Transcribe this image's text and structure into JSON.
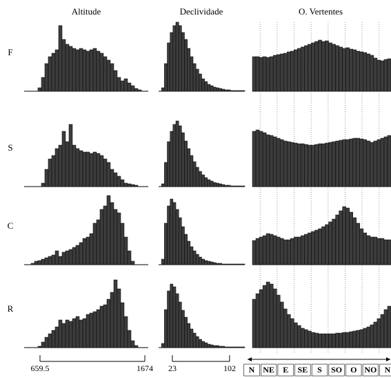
{
  "columns": [
    "Altitude",
    "Declividade",
    "O. Vertentes"
  ],
  "rows": [
    "F",
    "S",
    "C",
    "R"
  ],
  "x_axes": [
    {
      "xlim": [
        506,
        1707
      ],
      "xticks": [
        659.5,
        1674
      ]
    },
    {
      "xlim": [
        4,
        123
      ],
      "xticks": [
        23,
        102
      ]
    },
    {
      "categories": [
        "N",
        "NE",
        "E",
        "SE",
        "S",
        "SO",
        "O",
        "NO",
        "N"
      ]
    }
  ],
  "chart_data": [
    {
      "type": "bar",
      "ylim": [
        0,
        100
      ],
      "color": "#3c3c3c",
      "values": [
        0,
        0,
        0,
        0,
        5,
        20,
        40,
        50,
        55,
        60,
        95,
        75,
        68,
        65,
        62,
        60,
        62,
        60,
        58,
        60,
        62,
        58,
        55,
        50,
        45,
        40,
        30,
        20,
        15,
        18,
        12,
        8,
        4,
        2,
        0,
        0
      ]
    },
    {
      "type": "bar",
      "ylim": [
        0,
        100
      ],
      "color": "#3c3c3c",
      "values": [
        0,
        5,
        40,
        70,
        85,
        95,
        100,
        95,
        85,
        75,
        62,
        50,
        40,
        32,
        25,
        18,
        14,
        10,
        8,
        6,
        5,
        4,
        3,
        2,
        2,
        1,
        1,
        1,
        1,
        1
      ]
    },
    {
      "type": "bar",
      "ylim": [
        0,
        100
      ],
      "color": "#3c3c3c",
      "values": [
        50,
        50,
        49,
        50,
        49,
        50,
        52,
        53,
        54,
        55,
        57,
        58,
        60,
        62,
        64,
        66,
        68,
        70,
        72,
        74,
        72,
        73,
        70,
        68,
        66,
        64,
        62,
        63,
        61,
        60,
        58,
        57,
        56,
        54,
        52,
        48,
        45,
        44,
        46,
        47
      ]
    },
    {
      "type": "bar",
      "ylim": [
        0,
        100
      ],
      "color": "#3c3c3c",
      "values": [
        0,
        0,
        0,
        0,
        0,
        5,
        25,
        40,
        45,
        55,
        60,
        80,
        65,
        90,
        60,
        55,
        52,
        50,
        50,
        48,
        50,
        48,
        45,
        40,
        35,
        25,
        20,
        15,
        10,
        5,
        4,
        3,
        2,
        0,
        0,
        0
      ]
    },
    {
      "type": "bar",
      "ylim": [
        0,
        100
      ],
      "color": "#3c3c3c",
      "values": [
        0,
        4,
        35,
        65,
        80,
        90,
        95,
        88,
        78,
        66,
        55,
        45,
        36,
        28,
        22,
        17,
        13,
        10,
        8,
        6,
        5,
        4,
        3,
        2,
        2,
        1,
        1,
        1,
        1,
        1
      ]
    },
    {
      "type": "bar",
      "ylim": [
        0,
        100
      ],
      "color": "#3c3c3c",
      "values": [
        80,
        82,
        80,
        78,
        75,
        74,
        72,
        70,
        68,
        66,
        65,
        64,
        63,
        62,
        62,
        61,
        60,
        60,
        61,
        62,
        62,
        63,
        64,
        65,
        66,
        67,
        68,
        68,
        69,
        70,
        70,
        69,
        68,
        66,
        64,
        66,
        68,
        70,
        72,
        74
      ]
    },
    {
      "type": "bar",
      "ylim": [
        0,
        100
      ],
      "color": "#3c3c3c",
      "values": [
        0,
        0,
        2,
        5,
        6,
        8,
        10,
        12,
        14,
        20,
        12,
        18,
        20,
        22,
        25,
        28,
        32,
        38,
        40,
        45,
        60,
        65,
        80,
        85,
        100,
        90,
        80,
        75,
        60,
        40,
        20,
        5,
        0,
        0,
        0,
        0
      ]
    },
    {
      "type": "bar",
      "ylim": [
        0,
        100
      ],
      "color": "#3c3c3c",
      "values": [
        0,
        8,
        60,
        85,
        95,
        90,
        80,
        68,
        55,
        44,
        34,
        26,
        20,
        15,
        11,
        8,
        6,
        5,
        4,
        3,
        2,
        2,
        1,
        1,
        1,
        1,
        1,
        1,
        1,
        1
      ]
    },
    {
      "type": "bar",
      "ylim": [
        0,
        100
      ],
      "color": "#3c3c3c",
      "values": [
        35,
        38,
        40,
        42,
        45,
        44,
        42,
        40,
        38,
        36,
        36,
        38,
        40,
        40,
        42,
        44,
        46,
        48,
        50,
        52,
        55,
        58,
        62,
        66,
        72,
        78,
        84,
        82,
        76,
        68,
        60,
        52,
        46,
        42,
        40,
        40,
        38,
        38,
        36,
        36
      ]
    },
    {
      "type": "bar",
      "ylim": [
        0,
        100
      ],
      "color": "#3c3c3c",
      "values": [
        0,
        0,
        0,
        0,
        2,
        8,
        15,
        20,
        25,
        30,
        40,
        35,
        40,
        38,
        42,
        45,
        40,
        42,
        48,
        50,
        52,
        55,
        60,
        62,
        70,
        80,
        98,
        85,
        65,
        45,
        25,
        10,
        3,
        0,
        0,
        0
      ]
    },
    {
      "type": "bar",
      "ylim": [
        0,
        100
      ],
      "color": "#3c3c3c",
      "values": [
        0,
        6,
        55,
        82,
        92,
        88,
        78,
        66,
        54,
        44,
        35,
        27,
        21,
        16,
        12,
        9,
        7,
        5,
        4,
        3,
        3,
        2,
        2,
        1,
        1,
        1,
        1,
        1,
        1,
        1
      ]
    },
    {
      "type": "bar",
      "ylim": [
        0,
        100
      ],
      "color": "#3c3c3c",
      "values": [
        70,
        78,
        84,
        90,
        95,
        92,
        85,
        76,
        66,
        56,
        48,
        42,
        36,
        32,
        28,
        26,
        24,
        22,
        21,
        20,
        20,
        20,
        20,
        20,
        21,
        21,
        22,
        22,
        23,
        24,
        25,
        26,
        28,
        30,
        33,
        37,
        42,
        48,
        55,
        60
      ]
    }
  ]
}
